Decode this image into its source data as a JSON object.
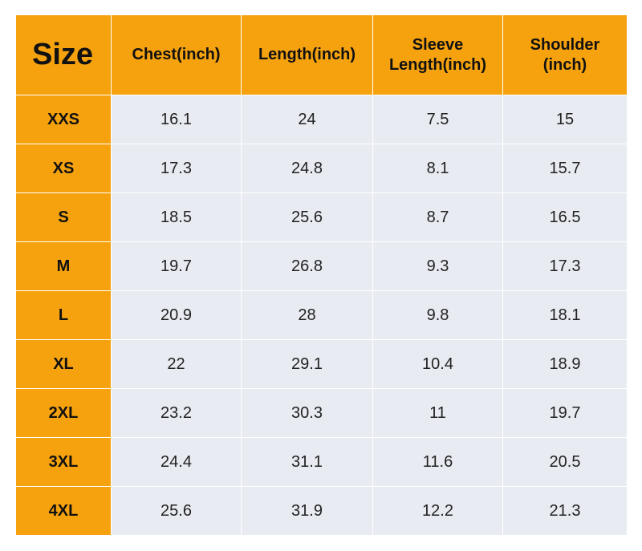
{
  "chart_data": {
    "type": "table",
    "header": {
      "size": "Size",
      "chest": "Chest(inch)",
      "length": "Length(inch)",
      "sleeve_line1": "Sleeve",
      "sleeve_line2": "Length(inch)",
      "shoulder_line1": "Shoulder",
      "shoulder_line2": "(inch)"
    },
    "rows": [
      {
        "size": "XXS",
        "chest": "16.1",
        "length": "24",
        "sleeve": "7.5",
        "shoulder": "15"
      },
      {
        "size": "XS",
        "chest": "17.3",
        "length": "24.8",
        "sleeve": "8.1",
        "shoulder": "15.7"
      },
      {
        "size": "S",
        "chest": "18.5",
        "length": "25.6",
        "sleeve": "8.7",
        "shoulder": "16.5"
      },
      {
        "size": "M",
        "chest": "19.7",
        "length": "26.8",
        "sleeve": "9.3",
        "shoulder": "17.3"
      },
      {
        "size": "L",
        "chest": "20.9",
        "length": "28",
        "sleeve": "9.8",
        "shoulder": "18.1"
      },
      {
        "size": "XL",
        "chest": "22",
        "length": "29.1",
        "sleeve": "10.4",
        "shoulder": "18.9"
      },
      {
        "size": "2XL",
        "chest": "23.2",
        "length": "30.3",
        "sleeve": "11",
        "shoulder": "19.7"
      },
      {
        "size": "3XL",
        "chest": "24.4",
        "length": "31.1",
        "sleeve": "11.6",
        "shoulder": "20.5"
      },
      {
        "size": "4XL",
        "chest": "25.6",
        "length": "31.9",
        "sleeve": "12.2",
        "shoulder": "21.3"
      }
    ],
    "colors": {
      "header_bg": "#f5a20e",
      "cell_bg": "#e8ebf1",
      "grid_line": "#ffffff"
    }
  }
}
